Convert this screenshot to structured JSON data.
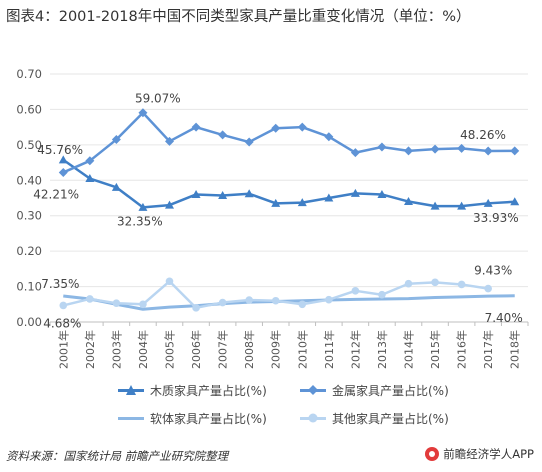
{
  "title": "图表4：2001-2018年中国不同类型家具产量比重变化情况（单位：%）",
  "footer": {
    "source": "资料来源：国家统计局 前瞻产业研究院整理",
    "brand": "前瞻经济学人APP"
  },
  "colors": {
    "wood": "#3f7fc6",
    "metal": "#5e93d6",
    "soft": "#8cb7e4",
    "other": "#b9d5f1",
    "grid": "#e6e6e6",
    "axis": "#bfbfbf"
  },
  "chart_data": {
    "type": "line",
    "title": "图表4：2001-2018年中国不同类型家具产量比重变化情况（单位：%）",
    "xlabel": "",
    "ylabel": "",
    "ylim": [
      0,
      0.7
    ],
    "yticks": [
      "0.00",
      "0.10",
      "0.20",
      "0.30",
      "0.40",
      "0.50",
      "0.60",
      "0.70"
    ],
    "grid": true,
    "legend_position": "bottom",
    "x": [
      "2001年",
      "2002年",
      "2003年",
      "2004年",
      "2005年",
      "2006年",
      "2007年",
      "2008年",
      "2009年",
      "2010年",
      "2011年",
      "2012年",
      "2013年",
      "2014年",
      "2015年",
      "2016年",
      "2017年",
      "2018年"
    ],
    "series": [
      {
        "name": "木质家具产量占比(%)",
        "marker": "triangle",
        "values": [
          0.4576,
          0.405,
          0.38,
          0.3235,
          0.33,
          0.36,
          0.357,
          0.362,
          0.335,
          0.337,
          0.35,
          0.363,
          0.36,
          0.34,
          0.327,
          0.327,
          0.335,
          0.3393
        ]
      },
      {
        "name": "金属家具产量占比(%)",
        "marker": "diamond",
        "values": [
          0.4221,
          0.455,
          0.515,
          0.5907,
          0.51,
          0.55,
          0.528,
          0.508,
          0.547,
          0.55,
          0.523,
          0.478,
          0.494,
          0.483,
          0.488,
          0.49,
          0.4826,
          0.483
        ]
      },
      {
        "name": "软体家具产量占比(%)",
        "marker": "none",
        "values": [
          0.0735,
          0.065,
          0.05,
          0.036,
          0.042,
          0.046,
          0.052,
          0.056,
          0.058,
          0.06,
          0.062,
          0.064,
          0.065,
          0.066,
          0.069,
          0.071,
          0.0732,
          0.074
        ]
      },
      {
        "name": "其他家具产量占比(%)",
        "marker": "circle",
        "values": [
          0.0468,
          0.065,
          0.053,
          0.05,
          0.115,
          0.04,
          0.055,
          0.062,
          0.06,
          0.05,
          0.063,
          0.088,
          0.077,
          0.108,
          0.112,
          0.106,
          0.0943,
          null
        ]
      }
    ],
    "annotations": [
      {
        "text": "45.76%",
        "series": 0,
        "index": 0
      },
      {
        "text": "42.21%",
        "series": 1,
        "index": 0
      },
      {
        "text": "59.07%",
        "series": 1,
        "index": 3
      },
      {
        "text": "32.35%",
        "series": 0,
        "index": 3
      },
      {
        "text": "48.26%",
        "series": 1,
        "index": 16
      },
      {
        "text": "33.93%",
        "series": 0,
        "index": 17
      },
      {
        "text": "7.35%",
        "series": 2,
        "index": 0
      },
      {
        "text": "4.68%",
        "series": 3,
        "index": 0
      },
      {
        "text": "9.43%",
        "series": 3,
        "index": 16
      },
      {
        "text": "7.40%",
        "series": 2,
        "index": 17
      }
    ]
  }
}
